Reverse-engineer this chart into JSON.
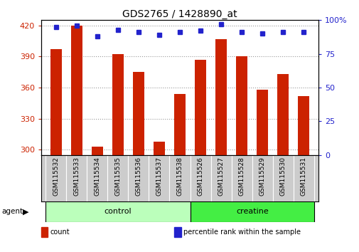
{
  "title": "GDS2765 / 1428890_at",
  "samples": [
    "GSM115532",
    "GSM115533",
    "GSM115534",
    "GSM115535",
    "GSM115536",
    "GSM115537",
    "GSM115538",
    "GSM115526",
    "GSM115527",
    "GSM115528",
    "GSM115529",
    "GSM115530",
    "GSM115531"
  ],
  "counts": [
    397,
    420,
    303,
    392,
    375,
    308,
    354,
    387,
    407,
    390,
    358,
    373,
    352
  ],
  "percentiles": [
    95,
    96,
    88,
    93,
    91,
    89,
    91,
    92,
    97,
    91,
    90,
    91,
    91
  ],
  "groups": [
    {
      "label": "control",
      "start": 0,
      "end": 7,
      "color": "#bbffbb"
    },
    {
      "label": "creatine",
      "start": 7,
      "end": 13,
      "color": "#44ee44"
    }
  ],
  "agent_label": "agent",
  "ylim_left": [
    295,
    425
  ],
  "ylim_right": [
    0,
    100
  ],
  "yticks_left": [
    300,
    330,
    360,
    390,
    420
  ],
  "yticks_right": [
    0,
    25,
    50,
    75,
    100
  ],
  "bar_color": "#cc2200",
  "dot_color": "#2222cc",
  "bar_bottom": 295,
  "grid_color": "#999999",
  "background_color": "#ffffff",
  "plot_bg_color": "#ffffff",
  "tick_label_color_left": "#cc2200",
  "tick_label_color_right": "#2222cc",
  "bar_width": 0.55,
  "legend_items": [
    {
      "label": "count",
      "color": "#cc2200"
    },
    {
      "label": "percentile rank within the sample",
      "color": "#2222cc"
    }
  ]
}
